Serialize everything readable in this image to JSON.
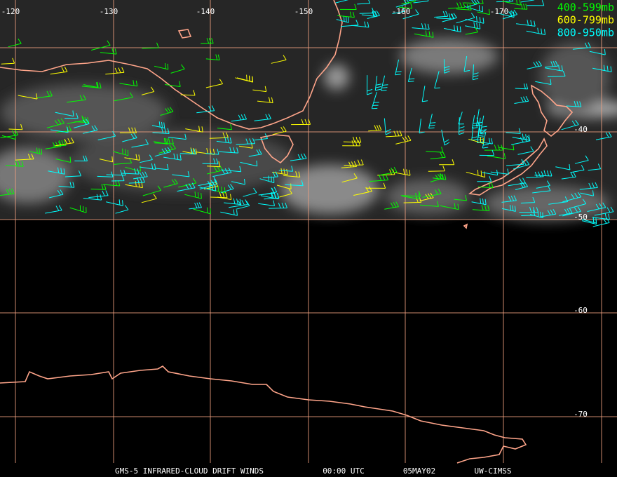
{
  "map": {
    "lon_labels": [
      "-120",
      "-130",
      "-140",
      "-150",
      "-160",
      "-170"
    ],
    "lat_labels": [
      "-40",
      "-50",
      "-60",
      "-70"
    ],
    "legend": [
      {
        "label": "400-599mb",
        "color": "#00ff00"
      },
      {
        "label": "600-799mb",
        "color": "#ffff00"
      },
      {
        "label": "800-950mb",
        "color": "#00ffff"
      }
    ],
    "footer": [
      "GMS-5 INFRARED-CLOUD DRIFT WINDS",
      "00:00 UTC",
      "05MAY02",
      "UW-CIMSS"
    ]
  }
}
